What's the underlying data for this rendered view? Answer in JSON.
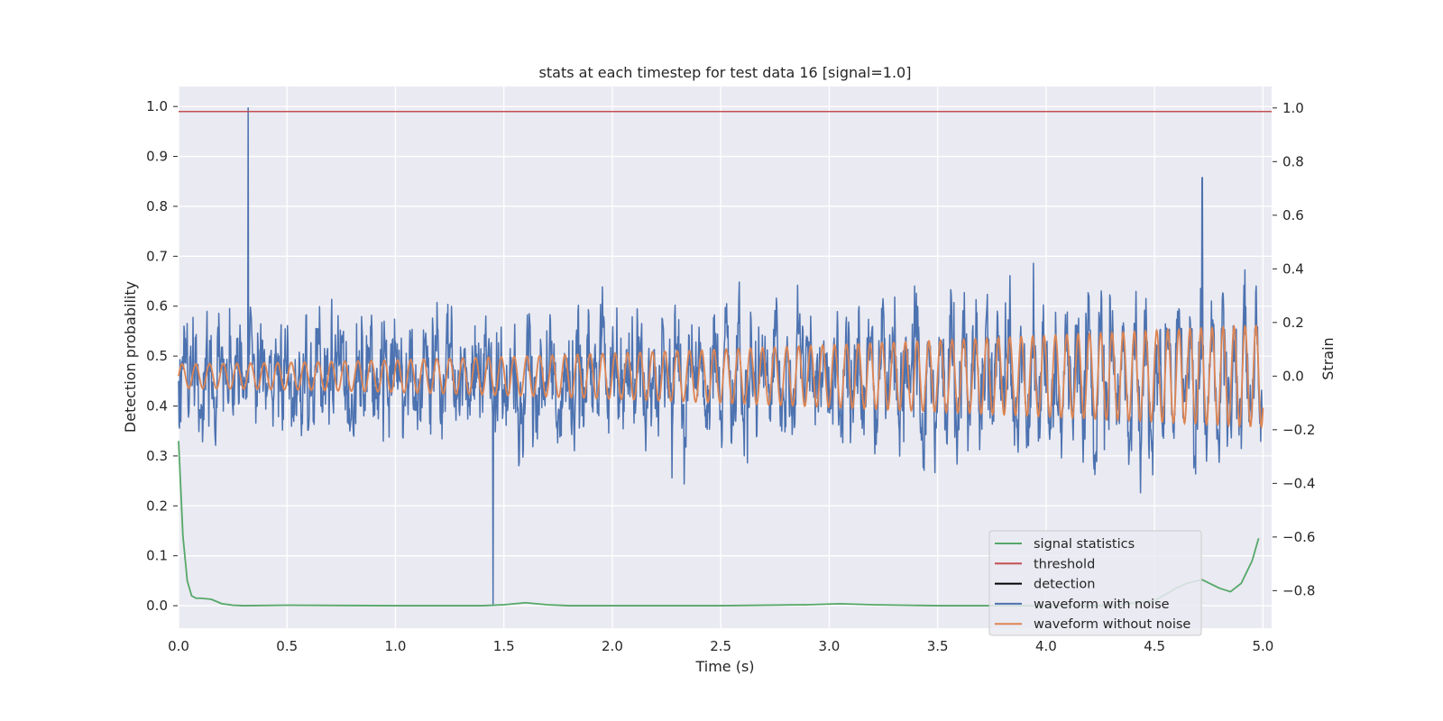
{
  "chart_data": {
    "type": "line",
    "title": "stats at each timestep for test data 16 [signal=1.0]",
    "xlabel": "Time (s)",
    "ylabel": "Detection probability",
    "y2label": "Strain",
    "xlim": [
      0.0,
      5.04
    ],
    "ylim": [
      -0.045,
      1.04
    ],
    "y2lim": [
      -0.94,
      1.08
    ],
    "xticks": [
      "0.0",
      "0.5",
      "1.0",
      "1.5",
      "2.0",
      "2.5",
      "3.0",
      "3.5",
      "4.0",
      "4.5",
      "5.0"
    ],
    "yticks": [
      "0.0",
      "0.1",
      "0.2",
      "0.3",
      "0.4",
      "0.5",
      "0.6",
      "0.7",
      "0.8",
      "0.9",
      "1.0"
    ],
    "y2ticks": [
      "−0.8",
      "−0.6",
      "−0.4",
      "−0.2",
      "0.0",
      "0.2",
      "0.4",
      "0.6",
      "0.8",
      "1.0"
    ],
    "grid": true,
    "legend_position": "lower-right",
    "series": [
      {
        "name": "signal statistics",
        "axis": "left",
        "color": "#55a868",
        "x": [
          0.0,
          0.02,
          0.04,
          0.06,
          0.08,
          0.1,
          0.15,
          0.2,
          0.25,
          0.3,
          0.5,
          1.0,
          1.4,
          1.5,
          1.6,
          1.7,
          1.8,
          2.5,
          2.9,
          3.05,
          3.2,
          3.5,
          4.0,
          4.3,
          4.5,
          4.6,
          4.65,
          4.72,
          4.8,
          4.85,
          4.9,
          4.95,
          4.98
        ],
        "y": [
          0.33,
          0.14,
          0.05,
          0.02,
          0.015,
          0.015,
          0.013,
          0.004,
          0.001,
          0.0,
          0.001,
          0.0,
          0.0,
          0.002,
          0.006,
          0.002,
          0.0,
          0.0,
          0.002,
          0.004,
          0.002,
          0.0,
          0.0,
          0.0,
          0.01,
          0.035,
          0.045,
          0.052,
          0.035,
          0.028,
          0.045,
          0.09,
          0.135
        ]
      },
      {
        "name": "threshold",
        "axis": "left",
        "color": "#c44e52",
        "x": [
          0.0,
          5.04
        ],
        "y": [
          0.99,
          0.99
        ]
      },
      {
        "name": "detection",
        "axis": "left",
        "color": "#000000",
        "x": [],
        "y": []
      },
      {
        "name": "waveform with noise",
        "axis": "right",
        "color": "#4c72b0",
        "x_range": [
          0.0,
          5.0
        ],
        "samples": 2400,
        "noise_amplitude": 0.22,
        "y_peaks": [
          [
            0.32,
            1.0
          ],
          [
            1.45,
            -0.85
          ],
          [
            4.72,
            0.74
          ]
        ]
      },
      {
        "name": "waveform without noise",
        "axis": "right",
        "color": "#dd8452",
        "x_range": [
          0.0,
          5.0
        ],
        "cycles": 89,
        "amplitude_start": 0.045,
        "amplitude_end": 0.19
      }
    ]
  }
}
